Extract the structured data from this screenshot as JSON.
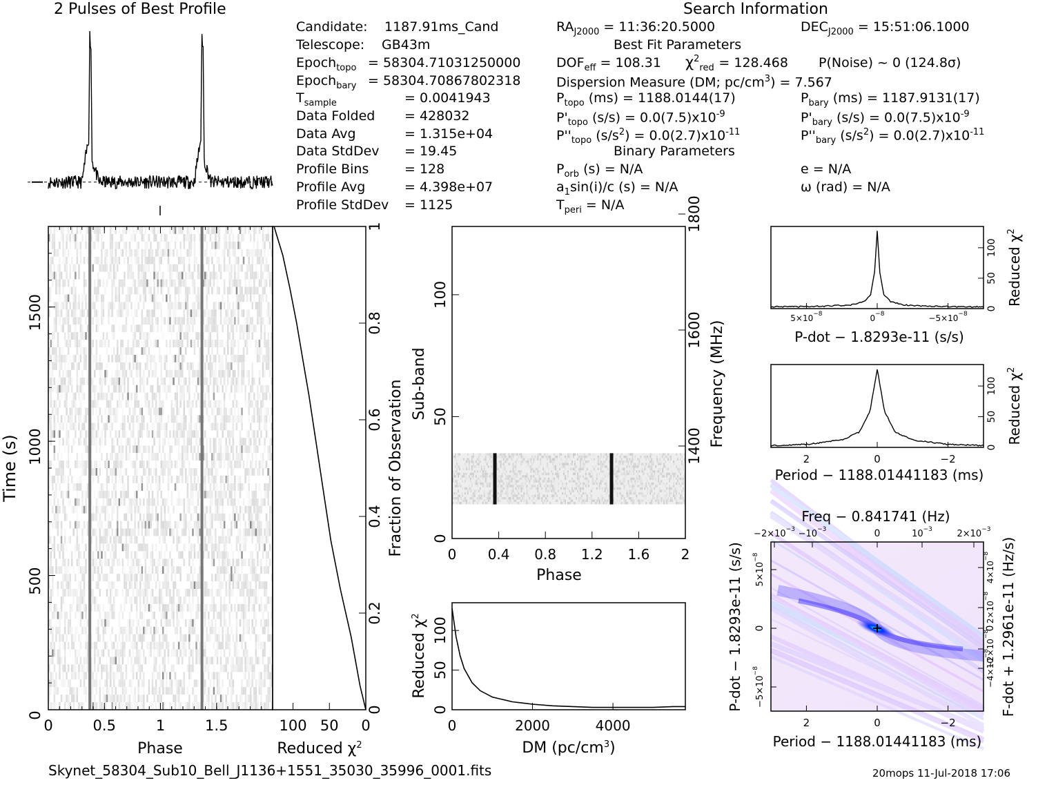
{
  "titles": {
    "profile": "2 Pulses of Best Profile",
    "search": "Search Information",
    "best_fit": "Best Fit Parameters",
    "binary": "Binary Parameters"
  },
  "info_col1": {
    "candidate_label": "Candidate:",
    "candidate": "1187.91ms_Cand",
    "telescope_label": "Telescope:",
    "telescope": "GB43m",
    "epoch_topo_label": "Epoch",
    "epoch_topo_sub": "topo",
    "epoch_topo": "= 58304.71031250000",
    "epoch_bary_label": "Epoch",
    "epoch_bary_sub": "bary",
    "epoch_bary": "= 58304.70867802318",
    "tsample_label": "T",
    "tsample_sub": "sample",
    "tsample": "=  0.0041943",
    "data_folded_label": "Data Folded",
    "data_folded": "=  428032",
    "data_avg_label": "Data Avg",
    "data_avg": "=  1.315e+04",
    "data_stddev_label": "Data StdDev",
    "data_stddev": "=  19.45",
    "profile_bins_label": "Profile Bins",
    "profile_bins": "=  128",
    "profile_avg_label": "Profile Avg",
    "profile_avg": "=  4.398e+07",
    "profile_stddev_label": "Profile StdDev",
    "profile_stddev": "=  1125"
  },
  "info_col2": {
    "ra": "= 11:36:20.5000",
    "ra_label": "RA",
    "ra_sub": "J2000",
    "dec": "= 15:51:06.1000",
    "dec_label": "DEC",
    "dec_sub": "J2000",
    "dof_label": "DOF",
    "dof_sub": "eff",
    "dof": "= 108.31",
    "chi2_label": "χ",
    "chi2_sup": "2",
    "chi2_sub": "red",
    "chi2": "= 128.468",
    "pnoise": "P(Noise) ~ 0    (124.8σ)",
    "dm_line": "Dispersion Measure (DM; pc/cm",
    "dm_sup": "3",
    "dm_value": ") = 7.567",
    "ptopo_label": "P",
    "ptopo_sub": "topo",
    "ptopo": " (ms) =  1188.0144(17)",
    "pdtopo_label": "P'",
    "pdtopo_sub": "topo",
    "pdtopo": " (s/s) = 0.0(7.5)x10",
    "pdtopo_exp": "-9",
    "pddtopo_label": "P''",
    "pddtopo_sub": "topo",
    "pddtopo": " (s/s",
    "pddtopo_unit_sup": "2",
    "pddtopo_val": ") = 0.0(2.7)x10",
    "pddtopo_exp": "-11",
    "porb_label": "P",
    "porb_sub": "orb",
    "porb": " (s) = N/A",
    "a1_label": "a",
    "a1_sub": "1",
    "a1": "sin(i)/c (s) = N/A",
    "tperi_label": "T",
    "tperi_sub": "peri",
    "tperi": " = N/A"
  },
  "info_col3": {
    "pbary_label": "P",
    "pbary_sub": "bary",
    "pbary": " (ms) =  1187.9131(17)",
    "pdbary_label": "P'",
    "pdbary_sub": "bary",
    "pdbary": " (s/s) = 0.0(7.5)x10",
    "pdbary_exp": "-9",
    "pddbary_label": "P''",
    "pddbary_sub": "bary",
    "pddbary": " (s/s",
    "pddbary_unit_sup": "2",
    "pddbary_val": ") = 0.0(2.7)x10",
    "pddbary_exp": "-11",
    "e": "e = N/A",
    "omega": "ω (rad) = N/A"
  },
  "footer": {
    "filename": "Skynet_58304_Sub10_Bell_J1136+1551_35030_35996_0001.fits",
    "stamp": "20mops  11-Jul-2018 17:06"
  },
  "chart_data": [
    {
      "type": "line",
      "name": "profile",
      "x": [
        0,
        0.3,
        0.36,
        0.37,
        0.38,
        0.39,
        0.45,
        1.0,
        1.3,
        1.36,
        1.37,
        1.38,
        1.39,
        1.45,
        2.0
      ],
      "y": [
        0.0,
        0.0,
        0.3,
        1.0,
        0.92,
        0.15,
        0.0,
        0.0,
        0.0,
        0.3,
        1.0,
        0.92,
        0.15,
        0.0,
        0.0
      ],
      "ylim": [
        -0.1,
        1.1
      ]
    },
    {
      "type": "heatmap",
      "name": "time-phase",
      "xlabel": "Phase",
      "ylabel": "Time (s)",
      "xlim": [
        0,
        2
      ],
      "ylim": [
        0,
        1800
      ],
      "xticks": [
        "0",
        "0.5",
        "1",
        "1.5"
      ],
      "yticks": [
        "0",
        "500",
        "1000",
        "1500"
      ],
      "pulse_phases": [
        0.37,
        1.37
      ]
    },
    {
      "type": "line",
      "name": "reduced-chi2-vs-fraction",
      "xlabel": "Reduced",
      "xlabel_sym": "χ",
      "xlabel_sup": "2",
      "ylabel": "Fraction of Observation",
      "xticks": [
        "100",
        "50",
        "0"
      ],
      "yticks": [
        "0",
        "0.2",
        "0.4",
        "0.6",
        "0.8",
        "1"
      ],
      "x": [
        0,
        8,
        20,
        35,
        48,
        58,
        68,
        78,
        86,
        95,
        104,
        114,
        126
      ],
      "y": [
        0,
        0.05,
        0.15,
        0.25,
        0.35,
        0.45,
        0.55,
        0.65,
        0.72,
        0.8,
        0.87,
        0.94,
        1.0
      ],
      "xlim": [
        128,
        0
      ],
      "ylim": [
        0,
        1
      ]
    },
    {
      "type": "heatmap",
      "name": "subband-phase",
      "xlabel": "Phase",
      "ylabel": "Sub-band",
      "y2label": "Frequency (MHz)",
      "xlim": [
        0,
        2
      ],
      "ylim": [
        0,
        128
      ],
      "xticks": [
        "0",
        "0.4",
        "0.8",
        "1.2",
        "1.6",
        "2"
      ],
      "yticks": [
        "0",
        "50",
        "100"
      ],
      "y2ticks": [
        "1400",
        "1600",
        "1800"
      ],
      "band_range": [
        14,
        35
      ],
      "pulse_phases": [
        0.37,
        1.37
      ]
    },
    {
      "type": "line",
      "name": "dm-curve",
      "xlabel": "DM (pc/cm",
      "xlabel_sup": "3",
      "xlabel_end": ")",
      "ylabel": "Reduced",
      "ylabel_sym": "χ",
      "ylabel_sup": "2",
      "xticks": [
        "0",
        "2000",
        "4000"
      ],
      "yticks": [
        "0",
        "50",
        "100"
      ],
      "x": [
        0,
        50,
        100,
        200,
        300,
        500,
        700,
        1000,
        1500,
        2000,
        2500,
        3000,
        3500,
        4000,
        4500,
        5000,
        5500,
        5800
      ],
      "y": [
        128,
        110,
        92,
        68,
        52,
        34,
        24,
        16,
        10,
        7,
        5,
        4,
        3,
        3,
        3,
        3,
        4,
        4
      ],
      "xlim": [
        0,
        5800
      ],
      "ylim": [
        0,
        135
      ]
    },
    {
      "type": "line",
      "name": "pdot-curve",
      "xlabel": "P-dot − 1.8293e-11 (s/s)",
      "ylabel": "Reduced",
      "ylabel_sym": "χ",
      "ylabel_sup": "2",
      "xticks": [
        "5×10",
        "0",
        "−5×10"
      ],
      "xticks_exp": "−8",
      "yticks": [
        "0",
        "50",
        "100"
      ],
      "x": [
        -8,
        -6,
        -4,
        -2,
        -1,
        -0.5,
        -0.2,
        0,
        0.2,
        0.5,
        1,
        2,
        4,
        6,
        8
      ],
      "y": [
        3,
        3,
        4,
        6,
        12,
        22,
        60,
        128,
        60,
        22,
        12,
        6,
        4,
        3,
        3
      ],
      "xlim": [
        8,
        -8
      ],
      "ylim": [
        0,
        135
      ]
    },
    {
      "type": "line",
      "name": "period-curve",
      "xlabel": "Period − 1188.01441183 (ms)",
      "ylabel": "Reduced",
      "ylabel_sym": "χ",
      "ylabel_sup": "2",
      "xticks": [
        "2",
        "0",
        "−2"
      ],
      "yticks": [
        "0",
        "50",
        "100"
      ],
      "x": [
        -3,
        -2,
        -1,
        -0.5,
        -0.2,
        0,
        0.2,
        0.5,
        1,
        2,
        3
      ],
      "y": [
        3,
        5,
        12,
        25,
        60,
        128,
        60,
        25,
        12,
        5,
        3
      ],
      "xlim": [
        3,
        -3
      ],
      "ylim": [
        0,
        135
      ]
    },
    {
      "type": "heatmap",
      "name": "period-pdot-plane",
      "title": "Freq − 0.841741 (Hz)",
      "xlabel": "Period − 1188.01441183 (ms)",
      "ylabel": "P-dot − 1.8293e-11 (s/s)",
      "y2label": "F-dot + 1.2961e-11 (Hz/s)",
      "xticks": [
        "2",
        "0",
        "−2"
      ],
      "x2ticks": [
        "−2×10",
        "−10",
        "0",
        "10",
        "2×10"
      ],
      "x2ticks_exp": "−3",
      "yticks": [
        "5×10",
        "0",
        "−5×10"
      ],
      "yticks_exp": "−8",
      "y2ticks": [
        "−4×10",
        "−2×10",
        "0",
        "2×10",
        "4×10"
      ],
      "y2ticks_exp": "−8",
      "peak": [
        0,
        0
      ]
    }
  ]
}
